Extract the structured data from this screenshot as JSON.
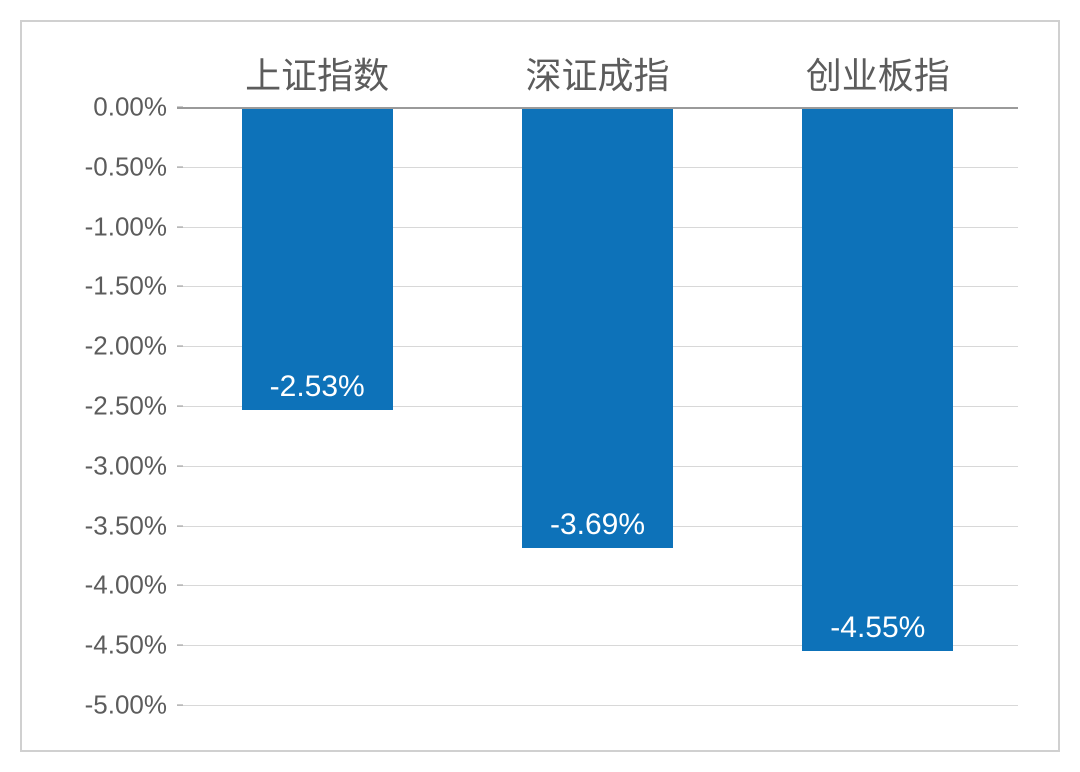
{
  "chart": {
    "type": "bar",
    "categories": [
      "上证指数",
      "深证成指",
      "创业板指"
    ],
    "values": [
      -2.53,
      -3.69,
      -4.55
    ],
    "value_labels": [
      "-2.53%",
      "-3.69%",
      "-4.55%"
    ],
    "bar_color": "#0d72b9",
    "background_color": "#ffffff",
    "border_color": "#d0d0d0",
    "grid_color": "#d8d8d8",
    "axis_line_color": "#9a9a9a",
    "y_min": -5.0,
    "y_max": 0.0,
    "y_tick_step": 0.5,
    "y_tick_labels": [
      "0.00%",
      "-0.50%",
      "-1.00%",
      "-1.50%",
      "-2.00%",
      "-2.50%",
      "-3.00%",
      "-3.50%",
      "-4.00%",
      "-4.50%",
      "-5.00%"
    ],
    "y_tick_values": [
      0.0,
      -0.5,
      -1.0,
      -1.5,
      -2.0,
      -2.5,
      -3.0,
      -3.5,
      -4.0,
      -4.5,
      -5.0
    ],
    "label_color": "#5c5c5c",
    "data_label_color": "#ffffff",
    "x_label_fontsize": 36,
    "y_label_fontsize": 26,
    "data_label_fontsize": 30,
    "bar_width_ratio": 0.54,
    "bar_x_positions_pct": [
      16.67,
      50.0,
      83.33
    ]
  }
}
